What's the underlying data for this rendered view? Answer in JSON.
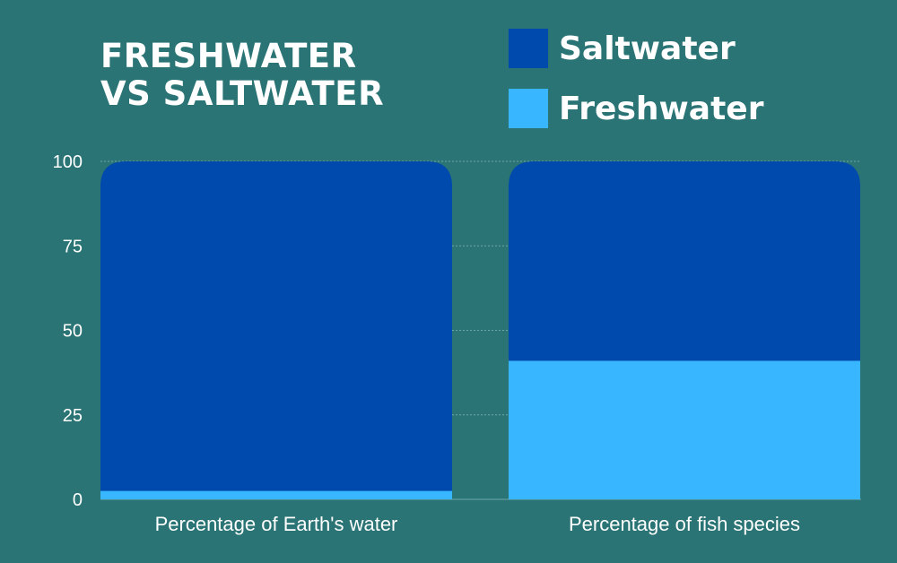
{
  "chart_data": {
    "type": "bar",
    "stacked": true,
    "title_lines": [
      "FRESHWATER",
      "VS SALTWATER"
    ],
    "categories": [
      "Percentage of Earth's water",
      "Percentage of fish species"
    ],
    "series": [
      {
        "name": "Freshwater",
        "values": [
          2.5,
          41
        ],
        "color": "#38b6ff"
      },
      {
        "name": "Saltwater",
        "values": [
          97.5,
          59
        ],
        "color": "#004aad"
      }
    ],
    "ylim": [
      0,
      100
    ],
    "yticks": [
      0,
      25,
      50,
      75,
      100
    ],
    "grid": true,
    "legend_position": "top-right",
    "legend_order": [
      "Saltwater",
      "Freshwater"
    ]
  },
  "colors": {
    "background": "#2a7475",
    "gridline": "#6ea8a9",
    "text": "#ffffff"
  }
}
